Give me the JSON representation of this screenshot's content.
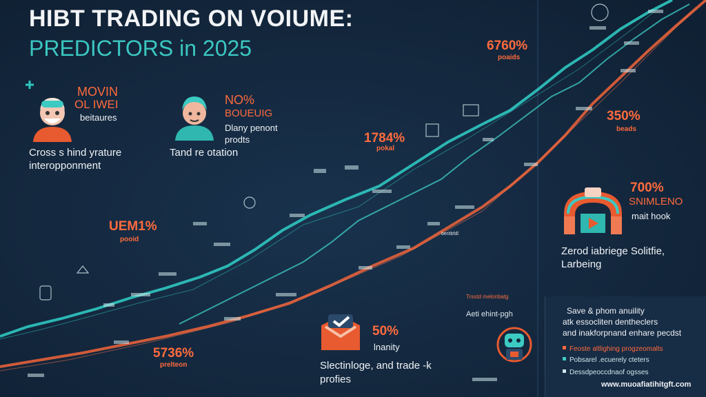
{
  "title": {
    "line1": "HIBT TRADING ON VOIUME:",
    "line2": "PREDICTORS in 2025"
  },
  "cards": {
    "card1": {
      "heading1": "MOVIN",
      "heading2": "OL IWEI",
      "sub": "beitaures",
      "line1": "Cross s hind yrature",
      "line2": "interopponment"
    },
    "card2": {
      "heading1": "NO%",
      "heading2": "BOUEUIG",
      "sub1": "Dlany penont",
      "sub2": "prodts",
      "line1": "Tand re otation"
    },
    "card_right": {
      "stat": "700%",
      "heading": "SNIMLENO",
      "sub": "mait hook",
      "line1": "Zerod iabriege Solitfie,",
      "line2": "Larbeing"
    },
    "card_bottom": {
      "stat": "50%",
      "sub": "lnanity",
      "line1": "Slectinloge, and trade -k",
      "line2": "profies"
    }
  },
  "stats": {
    "s_6760": {
      "value": "6760%",
      "sub": "poaids"
    },
    "s_1784": {
      "value": "1784%",
      "sub": "pokal"
    },
    "s_350": {
      "value": "350%",
      "sub": "beads"
    },
    "s_uem": {
      "value": "UEM1%",
      "sub": "pooid"
    },
    "s_5736": {
      "value": "5736%",
      "sub": "prelteon"
    }
  },
  "annotations": {
    "a1": "Aeti ehint-pgh",
    "a2": "beritbfdl",
    "a3": "Trsstd melonbatg"
  },
  "panel": {
    "line1": "Save & phom anuility",
    "line2": "atk essocliten dentheclers",
    "line3": "and inakforpnand enhare pecdst",
    "bullets": [
      "Feoste altlighing progzeomalts",
      "Pobsarel .ecuerely cteters",
      "Dessdpeoccdnaof ogsses"
    ],
    "url": "www.muoafiatihitgft.com"
  },
  "colors": {
    "background": "#13263c",
    "teal": "#2fc6c0",
    "orange": "#ff6b3d",
    "panel": "#172c45"
  }
}
